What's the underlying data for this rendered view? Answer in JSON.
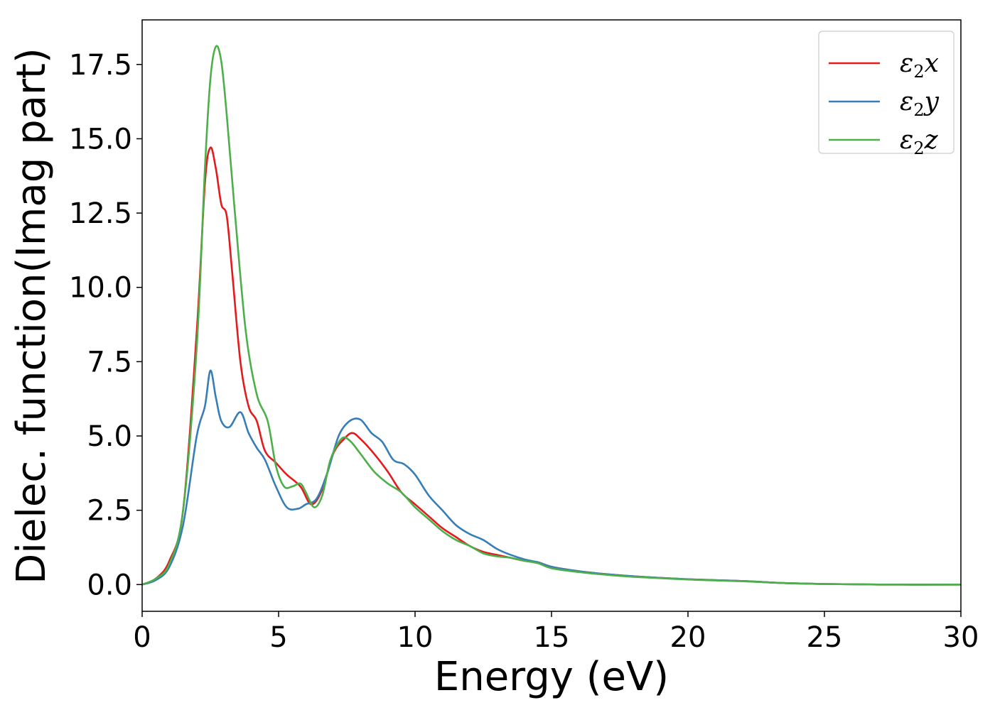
{
  "chart_data": {
    "type": "line",
    "title": "",
    "xlabel": "Energy (eV)",
    "ylabel": "Dielec. function(Imag part)",
    "xlim": [
      0,
      30
    ],
    "ylim": [
      -0.9,
      19.0
    ],
    "x_ticks": [
      0,
      5,
      10,
      15,
      20,
      25,
      30
    ],
    "x_tick_labels": [
      "0",
      "5",
      "10",
      "15",
      "20",
      "25",
      "30"
    ],
    "y_ticks": [
      0.0,
      2.5,
      5.0,
      7.5,
      10.0,
      12.5,
      15.0,
      17.5
    ],
    "y_tick_labels": [
      "0.0",
      "2.5",
      "5.0",
      "7.5",
      "10.0",
      "12.5",
      "15.0",
      "17.5"
    ],
    "grid": false,
    "legend_position": "top-right",
    "series": [
      {
        "name": "ε2x",
        "legend_base": "ε",
        "legend_sub": "2",
        "legend_tail": "x",
        "color": "#e41a1c",
        "points": [
          [
            0,
            0
          ],
          [
            0.5,
            0.2
          ],
          [
            1.0,
            0.8
          ],
          [
            1.5,
            2.5
          ],
          [
            2.0,
            8.5
          ],
          [
            2.3,
            13.5
          ],
          [
            2.5,
            14.7
          ],
          [
            2.7,
            14.0
          ],
          [
            2.9,
            12.8
          ],
          [
            3.1,
            12.4
          ],
          [
            3.3,
            10.5
          ],
          [
            3.6,
            7.5
          ],
          [
            3.9,
            6.0
          ],
          [
            4.2,
            5.5
          ],
          [
            4.5,
            4.5
          ],
          [
            4.9,
            4.1
          ],
          [
            5.3,
            3.7
          ],
          [
            5.8,
            3.3
          ],
          [
            6.2,
            2.7
          ],
          [
            6.6,
            3.2
          ],
          [
            7.0,
            4.4
          ],
          [
            7.4,
            4.9
          ],
          [
            7.7,
            5.1
          ],
          [
            8.0,
            4.9
          ],
          [
            8.5,
            4.4
          ],
          [
            9.0,
            3.8
          ],
          [
            9.5,
            3.1
          ],
          [
            10.0,
            2.7
          ],
          [
            10.5,
            2.3
          ],
          [
            11.0,
            1.9
          ],
          [
            11.5,
            1.6
          ],
          [
            12.0,
            1.3
          ],
          [
            12.5,
            1.1
          ],
          [
            13.0,
            1.0
          ],
          [
            13.5,
            0.9
          ],
          [
            14.0,
            0.8
          ],
          [
            14.5,
            0.75
          ],
          [
            15.0,
            0.6
          ],
          [
            16.0,
            0.45
          ],
          [
            17.0,
            0.35
          ],
          [
            18.0,
            0.28
          ],
          [
            20.0,
            0.18
          ],
          [
            22.0,
            0.12
          ],
          [
            23.5,
            0.05
          ],
          [
            25.0,
            0.02
          ],
          [
            27.0,
            0.0
          ],
          [
            30.0,
            0.0
          ]
        ]
      },
      {
        "name": "ε2y",
        "legend_base": "ε",
        "legend_sub": "2",
        "legend_tail": "y",
        "color": "#377eb8",
        "points": [
          [
            0,
            0
          ],
          [
            0.5,
            0.15
          ],
          [
            1.0,
            0.6
          ],
          [
            1.5,
            2.0
          ],
          [
            2.0,
            5.0
          ],
          [
            2.3,
            6.0
          ],
          [
            2.5,
            7.2
          ],
          [
            2.7,
            6.3
          ],
          [
            2.9,
            5.5
          ],
          [
            3.2,
            5.3
          ],
          [
            3.6,
            5.8
          ],
          [
            3.9,
            5.1
          ],
          [
            4.2,
            4.6
          ],
          [
            4.5,
            4.2
          ],
          [
            4.9,
            3.3
          ],
          [
            5.3,
            2.6
          ],
          [
            5.7,
            2.55
          ],
          [
            6.0,
            2.7
          ],
          [
            6.4,
            2.9
          ],
          [
            6.8,
            3.8
          ],
          [
            7.2,
            5.0
          ],
          [
            7.6,
            5.5
          ],
          [
            8.0,
            5.55
          ],
          [
            8.4,
            5.1
          ],
          [
            8.8,
            4.8
          ],
          [
            9.2,
            4.2
          ],
          [
            9.6,
            4.05
          ],
          [
            10.0,
            3.7
          ],
          [
            10.5,
            3.0
          ],
          [
            11.0,
            2.5
          ],
          [
            11.5,
            2.0
          ],
          [
            12.0,
            1.7
          ],
          [
            12.5,
            1.5
          ],
          [
            13.0,
            1.2
          ],
          [
            13.5,
            1.0
          ],
          [
            14.0,
            0.85
          ],
          [
            14.5,
            0.75
          ],
          [
            15.0,
            0.6
          ],
          [
            16.0,
            0.45
          ],
          [
            17.0,
            0.35
          ],
          [
            18.0,
            0.28
          ],
          [
            20.0,
            0.18
          ],
          [
            22.0,
            0.12
          ],
          [
            23.5,
            0.05
          ],
          [
            25.0,
            0.02
          ],
          [
            27.0,
            0.0
          ],
          [
            30.0,
            0.0
          ]
        ]
      },
      {
        "name": "ε2z",
        "legend_base": "ε",
        "legend_sub": "2",
        "legend_tail": "z",
        "color": "#4daf4a",
        "points": [
          [
            0,
            0
          ],
          [
            0.5,
            0.2
          ],
          [
            1.0,
            0.7
          ],
          [
            1.5,
            2.5
          ],
          [
            2.0,
            8.0
          ],
          [
            2.3,
            14.0
          ],
          [
            2.5,
            17.0
          ],
          [
            2.7,
            18.1
          ],
          [
            2.9,
            17.6
          ],
          [
            3.1,
            15.8
          ],
          [
            3.4,
            12.5
          ],
          [
            3.8,
            8.5
          ],
          [
            4.2,
            6.4
          ],
          [
            4.6,
            5.5
          ],
          [
            4.9,
            4.0
          ],
          [
            5.2,
            3.3
          ],
          [
            5.5,
            3.3
          ],
          [
            5.8,
            3.4
          ],
          [
            6.0,
            3.1
          ],
          [
            6.3,
            2.6
          ],
          [
            6.6,
            3.0
          ],
          [
            6.9,
            4.2
          ],
          [
            7.3,
            4.9
          ],
          [
            7.6,
            4.85
          ],
          [
            8.0,
            4.4
          ],
          [
            8.5,
            3.8
          ],
          [
            9.0,
            3.4
          ],
          [
            9.5,
            3.1
          ],
          [
            10.0,
            2.6
          ],
          [
            10.5,
            2.2
          ],
          [
            11.0,
            1.8
          ],
          [
            11.5,
            1.5
          ],
          [
            12.0,
            1.3
          ],
          [
            12.5,
            1.05
          ],
          [
            13.0,
            0.95
          ],
          [
            13.5,
            0.9
          ],
          [
            14.0,
            0.8
          ],
          [
            14.5,
            0.72
          ],
          [
            15.0,
            0.55
          ],
          [
            16.0,
            0.42
          ],
          [
            17.0,
            0.33
          ],
          [
            18.0,
            0.26
          ],
          [
            20.0,
            0.17
          ],
          [
            22.0,
            0.11
          ],
          [
            23.5,
            0.05
          ],
          [
            25.0,
            0.02
          ],
          [
            27.0,
            0.0
          ],
          [
            30.0,
            0.0
          ]
        ]
      }
    ]
  }
}
